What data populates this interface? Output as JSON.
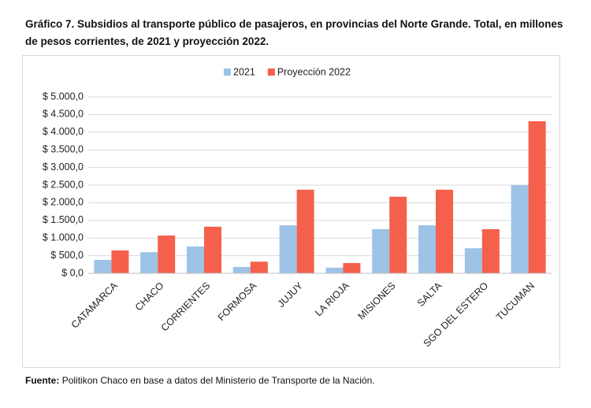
{
  "chart_data": {
    "type": "bar",
    "title": "Gráfico 7. Subsidios al transporte público de pasajeros, en provincias del Norte Grande. Total, en millones de pesos corrientes, de 2021 y proyección 2022.",
    "categories": [
      "CATAMARCA",
      "CHACO",
      "CORRIENTES",
      "FORMOSA",
      "JUJUY",
      "LA RIOJA",
      "MISIONES",
      "SALTA",
      "SGO DEL ESTERO",
      "TUCUMAN"
    ],
    "series": [
      {
        "name": "2021",
        "color": "#9dc3e6",
        "values": [
          380,
          600,
          760,
          180,
          1360,
          160,
          1250,
          1360,
          710,
          2500
        ]
      },
      {
        "name": "Proyección 2022",
        "color": "#f4604c",
        "values": [
          650,
          1070,
          1320,
          330,
          2370,
          290,
          2170,
          2370,
          1250,
          4310
        ]
      }
    ],
    "ylim": [
      0,
      5000
    ],
    "yticks": [
      {
        "value": 0,
        "label": "$ 0,0"
      },
      {
        "value": 500,
        "label": "$ 500,0"
      },
      {
        "value": 1000,
        "label": "$ 1.000,0"
      },
      {
        "value": 1500,
        "label": "$ 1.500,0"
      },
      {
        "value": 2000,
        "label": "$ 2.000,0"
      },
      {
        "value": 2500,
        "label": "$ 2.500,0"
      },
      {
        "value": 3000,
        "label": "$ 3.000,0"
      },
      {
        "value": 3500,
        "label": "$ 3.500,0"
      },
      {
        "value": 4000,
        "label": "$ 4.000,0"
      },
      {
        "value": 4500,
        "label": "$ 4.500,0"
      },
      {
        "value": 5000,
        "label": "$ 5.000,0"
      }
    ],
    "grid": true,
    "legend": "top",
    "source": {
      "label": "Fuente:",
      "text": "Politikon Chaco en base a datos del Ministerio de Transporte de la Nación."
    }
  }
}
